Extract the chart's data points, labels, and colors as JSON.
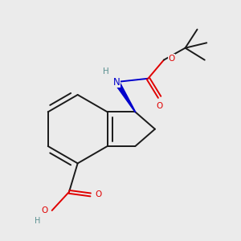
{
  "background_color": "#ebebeb",
  "bond_color": "#1a1a1a",
  "atom_colors": {
    "O": "#e00000",
    "N": "#0000cc",
    "H_on_N": "#5a9090",
    "H_on_O": "#5a9090",
    "C": "#1a1a1a"
  },
  "figsize": [
    3.0,
    3.0
  ],
  "dpi": 100,
  "lw": 1.4
}
